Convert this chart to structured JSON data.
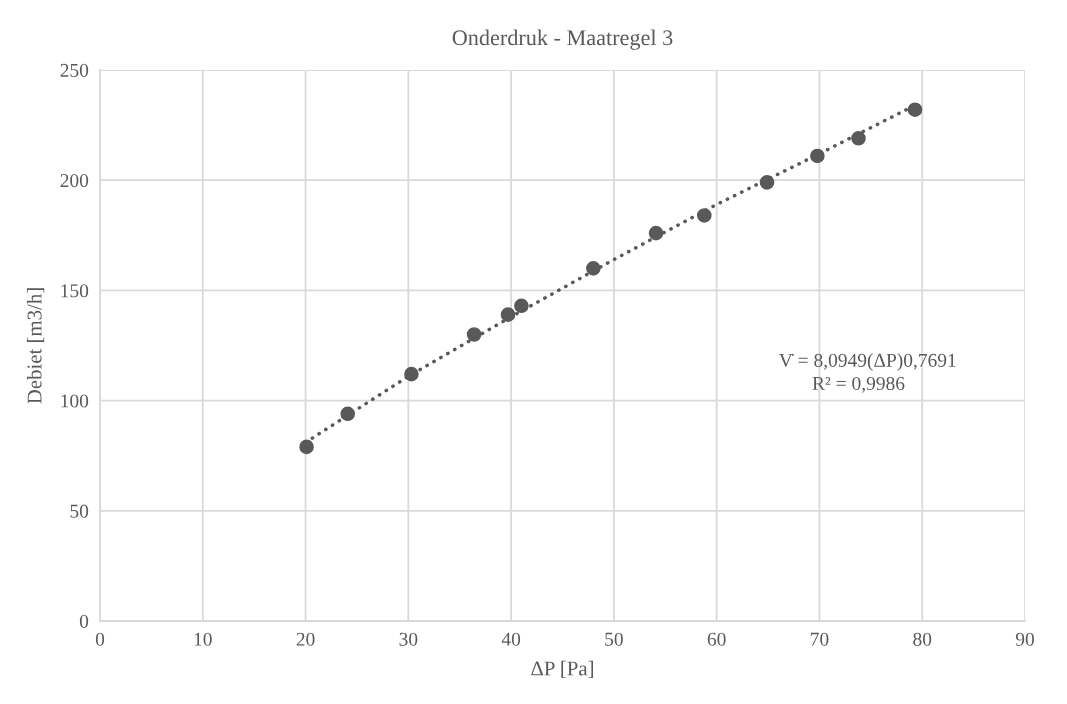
{
  "chart_data": {
    "type": "scatter",
    "title": "Onderdruk - Maatregel 3",
    "xlabel": "ΔP [Pa]",
    "ylabel": "Debiet [m3/h]",
    "xlim": [
      0,
      90
    ],
    "xticks": [
      0,
      10,
      20,
      30,
      40,
      50,
      60,
      70,
      80,
      90
    ],
    "ylim": [
      0,
      250
    ],
    "yticks": [
      0,
      50,
      100,
      150,
      200,
      250
    ],
    "grid": true,
    "marker": "circle",
    "series": [
      {
        "color": "#595959",
        "x": [
          20.1,
          24.1,
          30.3,
          36.4,
          39.7,
          41.0,
          48.0,
          54.1,
          58.8,
          64.9,
          69.8,
          73.8,
          79.3
        ],
        "values": [
          79,
          94,
          112,
          130,
          139,
          143,
          160,
          176,
          184,
          199,
          211,
          219,
          232
        ]
      },
      {
        "type": "line",
        "color": "#595959",
        "line_style": "dotted",
        "marker": "none",
        "x": [
          20,
          30,
          40,
          50,
          60,
          70,
          79.3
        ],
        "values": [
          81,
          111,
          138,
          164,
          189,
          212,
          234
        ]
      }
    ],
    "annotations": [
      "V̇ = 8,0949(ΔP)0,7691",
      "R² = 0,9986"
    ]
  }
}
